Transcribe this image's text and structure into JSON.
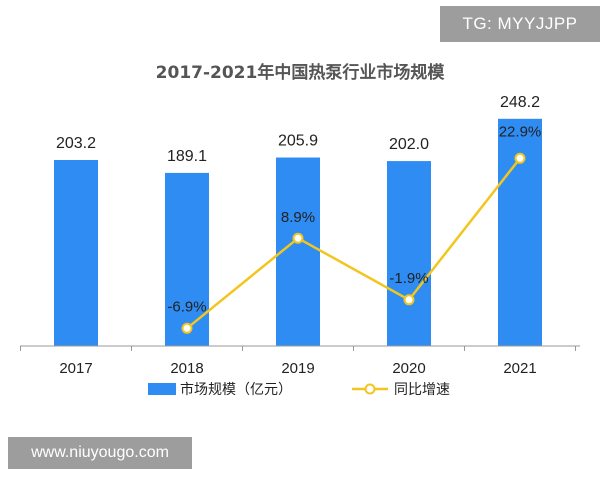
{
  "watermarks": {
    "top": "TG: MYYJJPP",
    "bottom": "www.niuyougo.com"
  },
  "colors": {
    "bar": "#2f8cf2",
    "line": "#f2c61f",
    "marker_fill": "#ffffff",
    "axis": "#9a9a9a",
    "title": "#555555"
  },
  "chart_data": {
    "type": "bar",
    "title": "2017-2021年中国热泵行业市场规模",
    "categories": [
      "2017",
      "2018",
      "2019",
      "2020",
      "2021"
    ],
    "series": [
      {
        "name": "市场规模（亿元）",
        "type": "bar",
        "values": [
          203.2,
          189.1,
          205.9,
          202.0,
          248.2
        ],
        "labels": [
          "203.2",
          "189.1",
          "205.9",
          "202.0",
          "248.2"
        ]
      },
      {
        "name": "同比增速",
        "type": "line",
        "axis": "secondary",
        "values": [
          null,
          -6.9,
          8.9,
          -1.9,
          22.9
        ],
        "labels": [
          "",
          "-6.9%",
          "8.9%",
          "-1.9%",
          "22.9%"
        ]
      }
    ],
    "ylim": [
      0,
      260
    ],
    "y2lim": [
      -10,
      24
    ],
    "grid": false,
    "legend": "bottom"
  }
}
